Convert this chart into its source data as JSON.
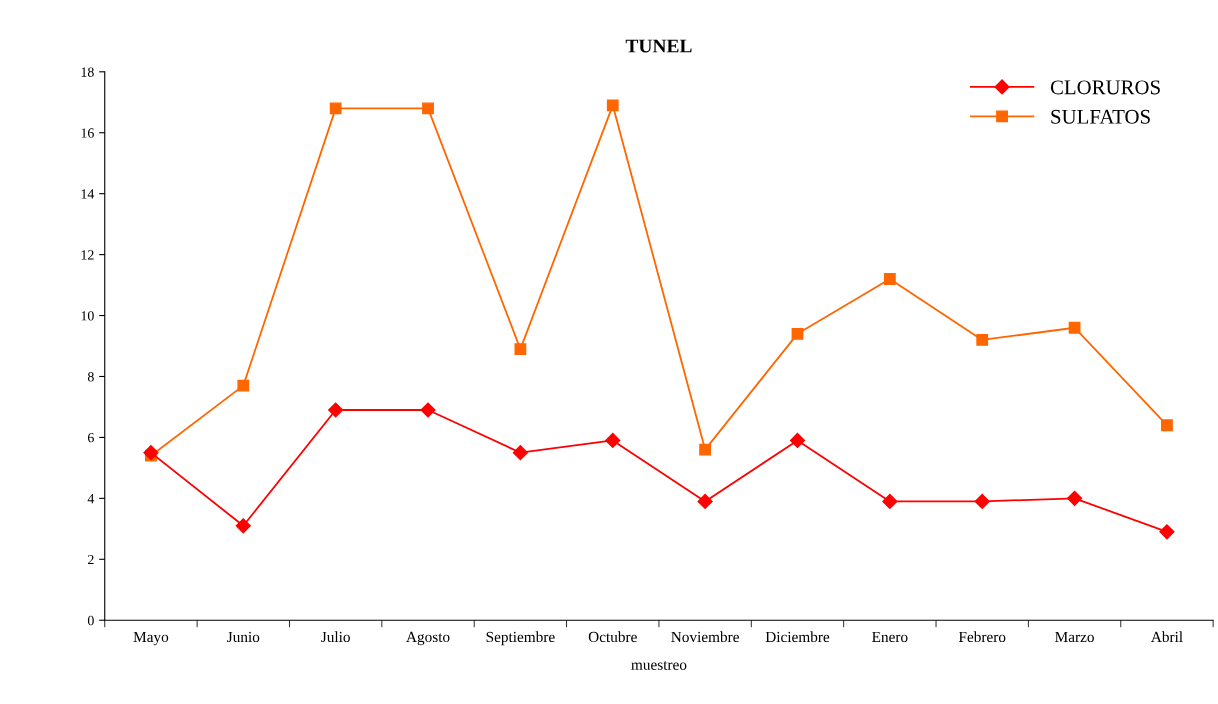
{
  "chart_data": {
    "type": "line",
    "title": "TUNEL",
    "xlabel": "muestreo",
    "categories": [
      "Mayo",
      "Junio",
      "Julio",
      "Agosto",
      "Septiembre",
      "Octubre",
      "Noviembre",
      "Diciembre",
      "Enero",
      "Febrero",
      "Marzo",
      "Abril"
    ],
    "series": [
      {
        "name": "CLORUROS",
        "color": "#ff0000",
        "marker": "diamond",
        "values": [
          5.5,
          3.1,
          6.9,
          6.9,
          5.5,
          5.9,
          3.9,
          5.9,
          3.9,
          3.9,
          4.0,
          2.9
        ]
      },
      {
        "name": "SULFATOS",
        "color": "#ff6600",
        "marker": "square",
        "values": [
          5.4,
          7.7,
          16.8,
          16.8,
          8.9,
          16.9,
          5.6,
          9.4,
          11.2,
          9.2,
          9.6,
          6.4
        ]
      }
    ],
    "ylim": [
      0,
      18
    ],
    "yticks": [
      0,
      2,
      4,
      6,
      8,
      10,
      12,
      14,
      16,
      18
    ],
    "grid": false,
    "legend": "top right",
    "line_style": "solid"
  }
}
